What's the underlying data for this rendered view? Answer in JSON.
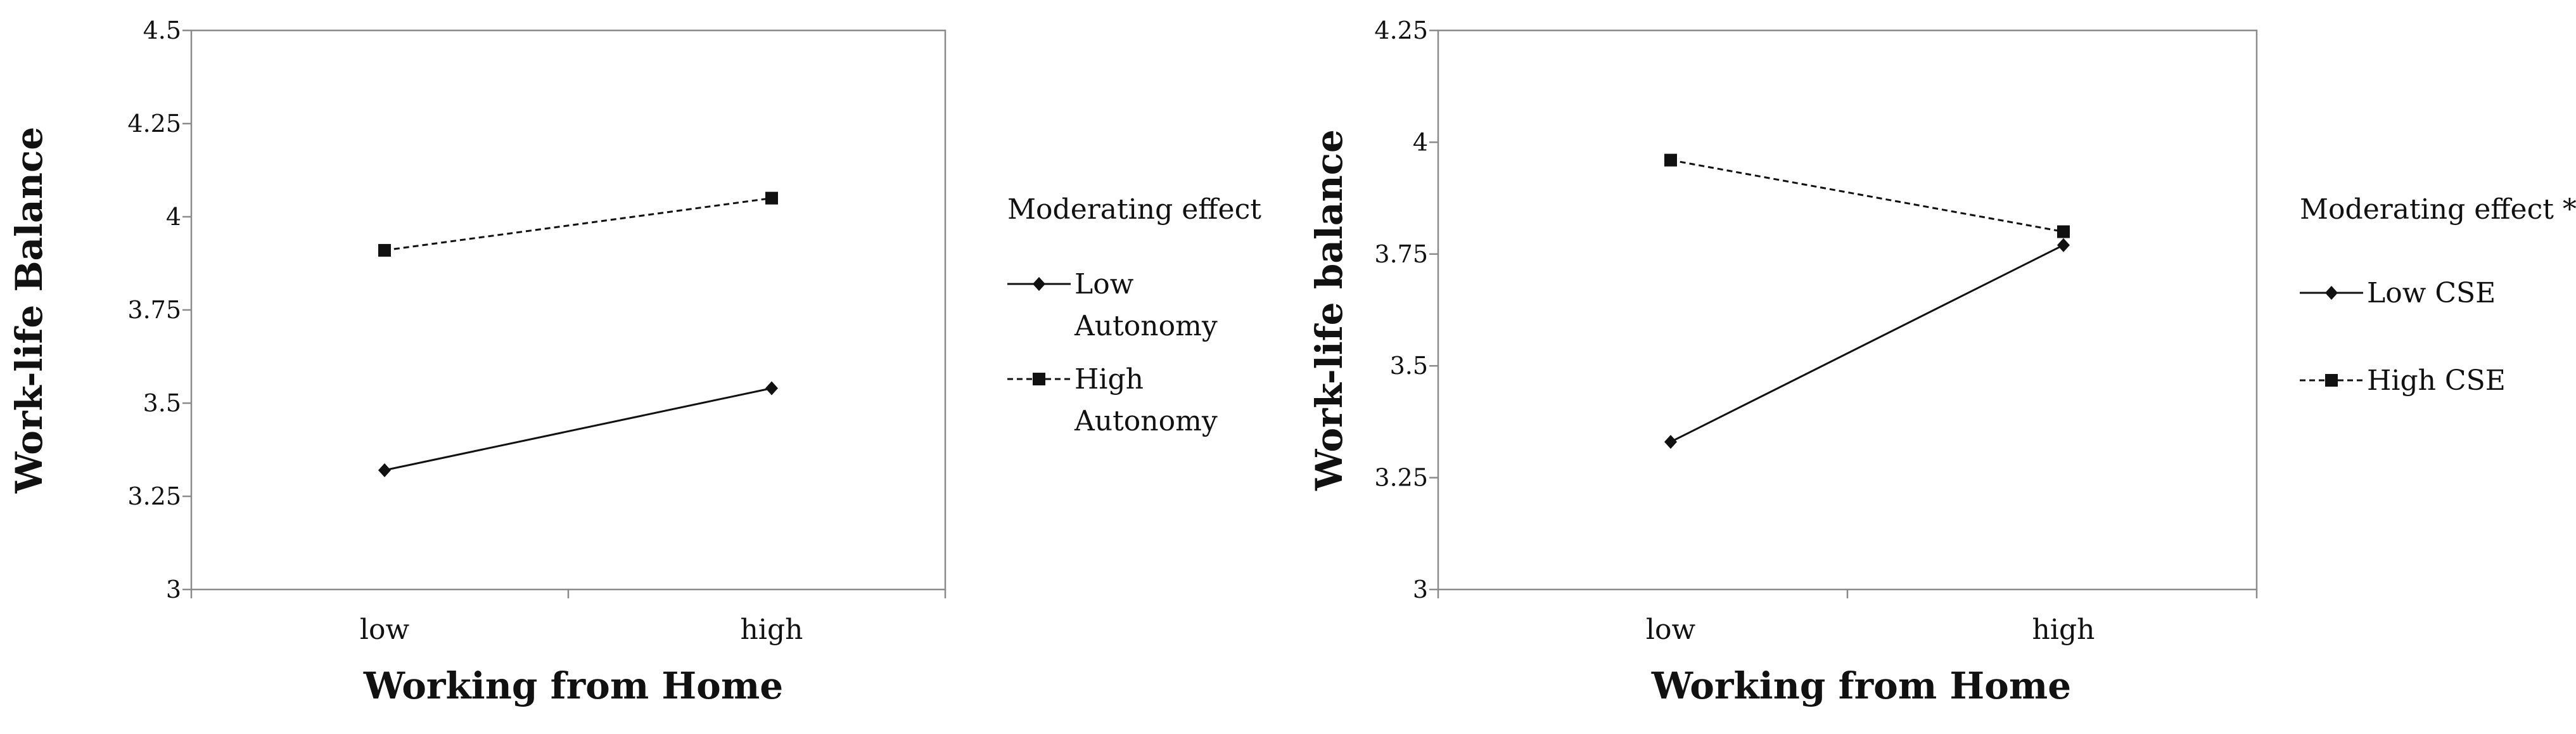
{
  "chart_data": [
    {
      "type": "line",
      "xlabel": "Working from Home",
      "ylabel": "Work-life Balance",
      "categories": [
        "low",
        "high"
      ],
      "ylim": [
        3,
        4.5
      ],
      "yticks": [
        "3",
        "3.25",
        "3.5",
        "3.75",
        "4",
        "4.25",
        "4.5"
      ],
      "grid": false,
      "legend_position": "right",
      "legend_title": "Moderating effect",
      "series": [
        {
          "name": "Low Autonomy",
          "values": [
            3.32,
            3.54
          ],
          "line_style": "solid",
          "marker": "diamond",
          "color": "#111111"
        },
        {
          "name": "High Autonomy",
          "values": [
            3.91,
            4.05
          ],
          "line_style": "dashed",
          "marker": "square",
          "color": "#111111"
        }
      ]
    },
    {
      "type": "line",
      "xlabel": "Working from Home",
      "ylabel": "Work-life balance",
      "categories": [
        "low",
        "high"
      ],
      "ylim": [
        3,
        4.25
      ],
      "yticks": [
        "3",
        "3.25",
        "3.5",
        "3.75",
        "4",
        "4.25"
      ],
      "grid": false,
      "legend_position": "right",
      "legend_title": "Moderating effect **",
      "series": [
        {
          "name": "Low CSE",
          "values": [
            3.33,
            3.77
          ],
          "line_style": "solid",
          "marker": "diamond",
          "color": "#111111"
        },
        {
          "name": "High CSE",
          "values": [
            3.96,
            3.8
          ],
          "line_style": "dashed",
          "marker": "square",
          "color": "#111111"
        }
      ]
    }
  ]
}
